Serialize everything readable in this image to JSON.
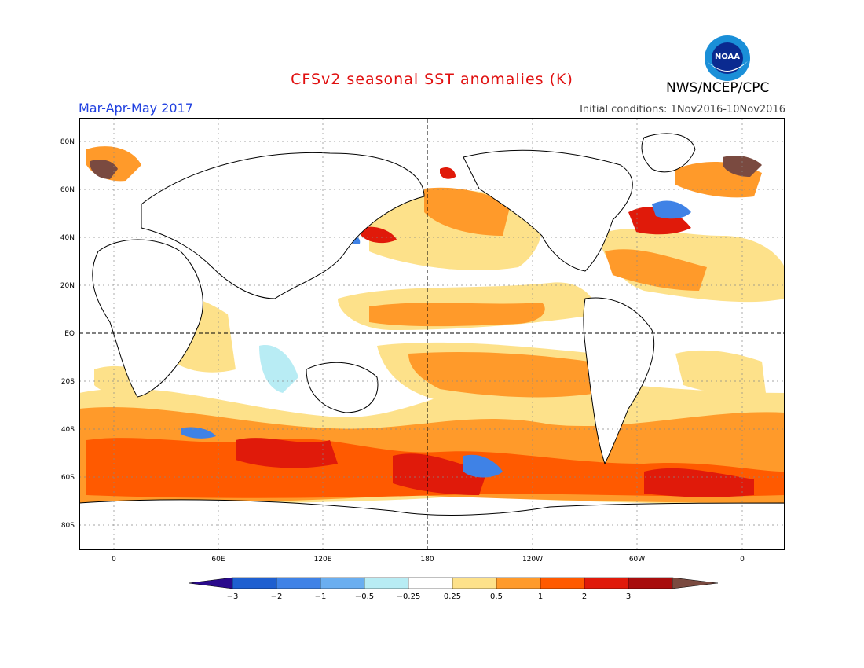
{
  "header": {
    "title": "CFSv2 seasonal SST anomalies (K)",
    "period": "Mar-Apr-May 2017",
    "initial_conditions": "Initial conditions: 1Nov2016-10Nov2016",
    "agency": "NWS/NCEP/CPC",
    "logo_text": "NOAA"
  },
  "map": {
    "lat_labels": [
      "80N",
      "60N",
      "40N",
      "20N",
      "EQ",
      "20S",
      "40S",
      "60S",
      "80S"
    ],
    "lon_labels": [
      "0",
      "60E",
      "120E",
      "180",
      "120W",
      "60W",
      "0"
    ]
  },
  "colorbar": {
    "labels": [
      "-3",
      "-2",
      "-1",
      "-0.5",
      "-0.25",
      "0.25",
      "0.5",
      "1",
      "2",
      "3"
    ],
    "colors": [
      "#2a0a8c",
      "#1e5fd0",
      "#3f82e6",
      "#6aaef0",
      "#b8ecf4",
      "#ffffff",
      "#fde18a",
      "#ff9a2a",
      "#ff5a00",
      "#e01a0a",
      "#a80d0d",
      "#7a4a40"
    ]
  }
}
